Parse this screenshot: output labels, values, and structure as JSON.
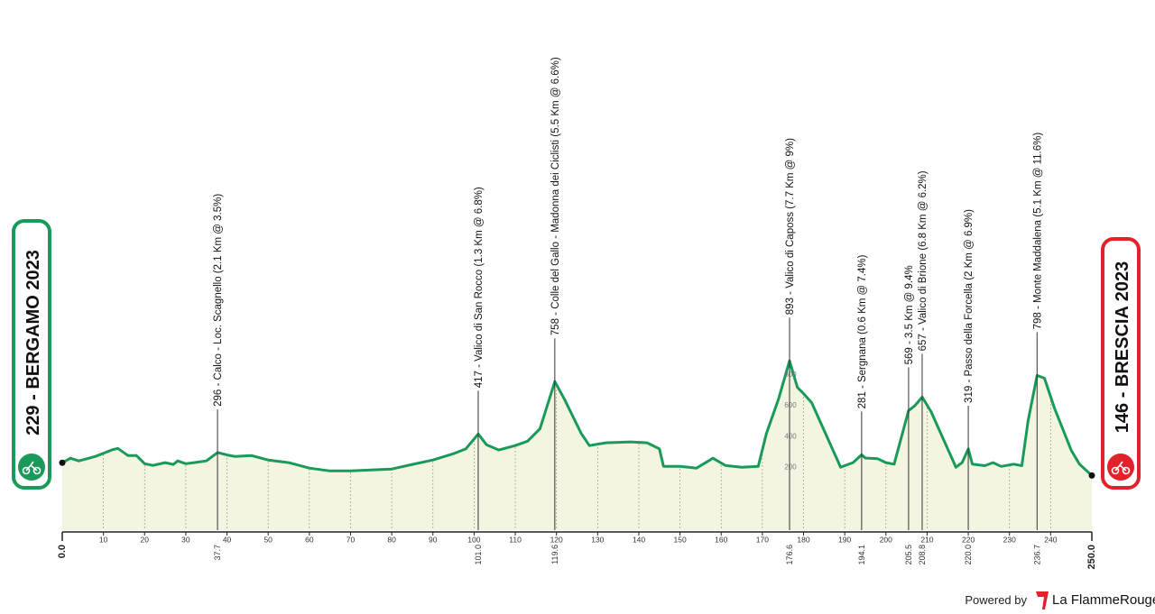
{
  "chart_data": {
    "type": "area",
    "start_label": "229 - BERGAMO 2023",
    "end_label": "146 - BRESCIA 2023",
    "color": "#1a9a5a",
    "fill": "#f4f4e2",
    "x": [
      0,
      2,
      4,
      8,
      12,
      13.5,
      16,
      18,
      20,
      22,
      25,
      27,
      28,
      30,
      32,
      35,
      37.7,
      40,
      42,
      46,
      50,
      55,
      60,
      65,
      70,
      75,
      80,
      85,
      90,
      95,
      98,
      101,
      103,
      106,
      110,
      113,
      116,
      119.6,
      122,
      126,
      128,
      132,
      138,
      142,
      145,
      146,
      150,
      154,
      158,
      161,
      165,
      169,
      171,
      174,
      176.6,
      178.5,
      180,
      182,
      186,
      189,
      192,
      194.1,
      195,
      198,
      200,
      202,
      205.5,
      207,
      208.8,
      211,
      214,
      217,
      218.5,
      220,
      221,
      224,
      226,
      228,
      231,
      233,
      234.5,
      236.7,
      238.5,
      241,
      245,
      247,
      250
    ],
    "values": [
      229,
      259,
      241,
      270,
      312,
      323,
      276,
      276,
      223,
      212,
      230,
      218,
      241,
      223,
      230,
      241,
      296,
      280,
      270,
      276,
      247,
      230,
      194,
      176,
      176,
      182,
      188,
      218,
      247,
      288,
      320,
      417,
      347,
      312,
      341,
      370,
      450,
      758,
      640,
      420,
      341,
      359,
      365,
      359,
      320,
      206,
      206,
      194,
      259,
      212,
      200,
      206,
      420,
      650,
      893,
      720,
      680,
      620,
      380,
      200,
      230,
      281,
      260,
      255,
      230,
      220,
      569,
      600,
      657,
      560,
      380,
      200,
      230,
      319,
      220,
      210,
      230,
      205,
      220,
      210,
      500,
      798,
      780,
      580,
      310,
      220,
      146
    ],
    "xlim": [
      0,
      250
    ],
    "ylim": [
      -210,
      1000
    ],
    "xticks": [
      {
        "value": 0,
        "label": "0.0"
      },
      10,
      20,
      30,
      40,
      50,
      60,
      70,
      80,
      90,
      100,
      110,
      120,
      130,
      140,
      150,
      160,
      170,
      180,
      190,
      200,
      210,
      220,
      230,
      240,
      {
        "value": 250,
        "label": "250.0"
      }
    ],
    "yticks": [
      200,
      400,
      600,
      800
    ],
    "annotations": [
      {
        "text": "296 - Calco - Loc. Scagnello (2.1 Km @ 3.5%)",
        "km": 37.7,
        "elevation": 296
      },
      {
        "text": "417 - Valico di San Rocco (1.3 Km @ 6.8%)",
        "km": {
          "value": 101,
          "label": "101.0"
        },
        "elevation": 417
      },
      {
        "text": "758 - Colle del Gallo - Madonna dei Ciclisti (5.5 Km @ 6.6%)",
        "km": 119.6,
        "elevation": 758
      },
      {
        "text": "893 - Valico di Caposs (7.7 Km @ 9%)",
        "km": 176.6,
        "elevation": 893
      },
      {
        "text": "281 - Sergnana (0.6 Km @ 7.4%)",
        "km": 194.1,
        "elevation": 281
      },
      {
        "text": "569 - 3.5 Km @ 9.4%",
        "km": 205.5,
        "elevation": 569
      },
      {
        "text": "657 - Valico di Brione (6.8 Km @ 6.2%)",
        "km": 208.8,
        "elevation": 657
      },
      {
        "text": "319 - Passo della Forcella (2 Km @ 6.9%)",
        "km": {
          "value": 220,
          "label": "220.0"
        },
        "elevation": 319
      },
      {
        "text": "798 - Monte Maddalena (5.1 Km @ 11.6%)",
        "km": 236.7,
        "elevation": 798
      }
    ]
  },
  "footer": {
    "powered": "Powered by",
    "brand": "La FlammeRouge"
  }
}
